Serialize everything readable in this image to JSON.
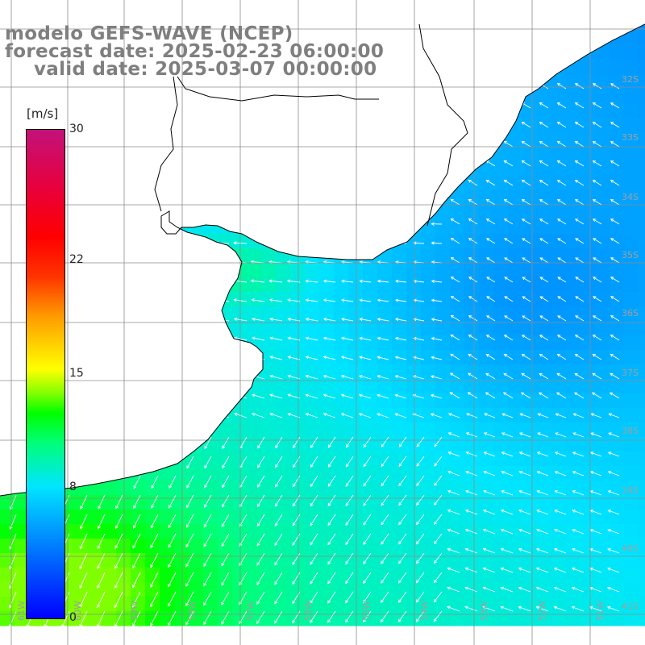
{
  "title": {
    "line1": "modelo GEFS-WAVE (NCEP)",
    "line2": "forecast date: 2025-02-23 06:00:00",
    "line3": "valid date: 2025-03-07 00:00:00"
  },
  "colorbar": {
    "units": "[m/s]",
    "ticks": [
      {
        "label": "30",
        "value": 30
      },
      {
        "label": "22",
        "value": 22
      },
      {
        "label": "15",
        "value": 15
      },
      {
        "label": "8",
        "value": 8
      },
      {
        "label": "0",
        "value": 0
      }
    ],
    "range": [
      0,
      30
    ],
    "colors": [
      "#0000ff",
      "#00e5ff",
      "#00ff00",
      "#ffff00",
      "#ff0000",
      "#c2127a"
    ]
  },
  "map": {
    "latitude_labels": [
      "32S",
      "33S",
      "34S",
      "35S",
      "36S",
      "37S",
      "38S",
      "39S",
      "40S",
      "41S"
    ],
    "longitude_labels": [
      "61W",
      "60W",
      "59W",
      "58W",
      "57W",
      "56W",
      "55W",
      "54W",
      "53W",
      "52W",
      "51W"
    ],
    "land_color": "#ffffff",
    "coastline_color": "#000000",
    "grid_color": "#8c8c8c",
    "arrow_color": "#ffffff",
    "grid": true
  }
}
